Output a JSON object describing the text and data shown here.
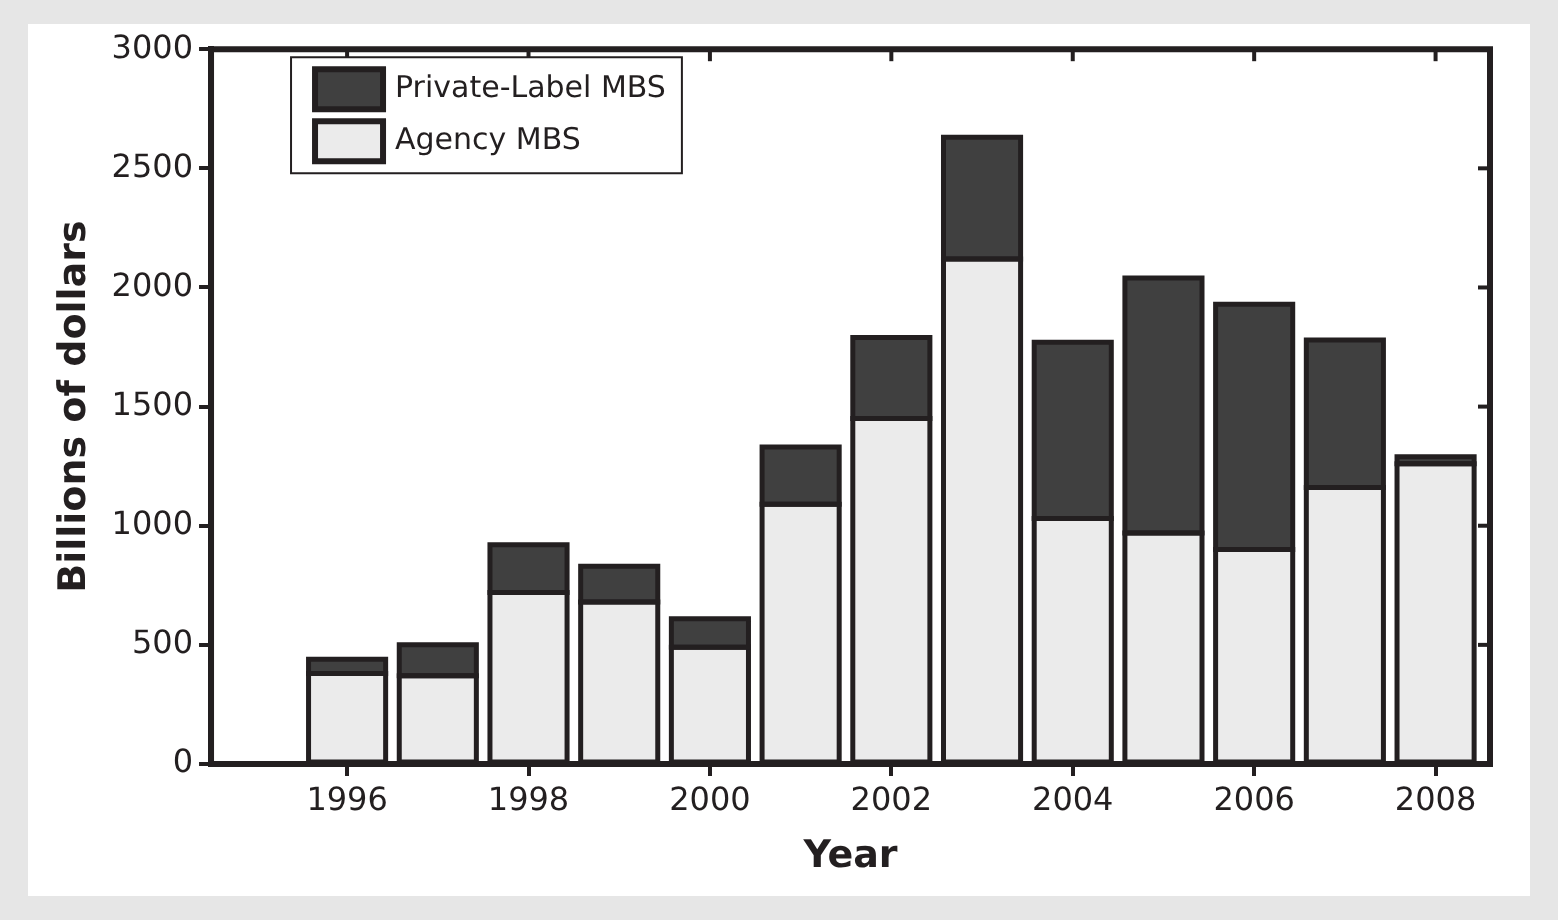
{
  "chart_data": {
    "type": "bar",
    "stacked": true,
    "xlabel": "Year",
    "ylabel": "Billions of dollars",
    "x": [
      1996,
      1997,
      1998,
      1999,
      2000,
      2001,
      2002,
      2003,
      2004,
      2005,
      2006,
      2007,
      2008
    ],
    "series": [
      {
        "name": "Agency MBS",
        "color": "#ebebeb",
        "values": [
          380,
          370,
          720,
          680,
          490,
          1090,
          1450,
          2120,
          1030,
          970,
          900,
          1160,
          1260
        ]
      },
      {
        "name": "Private-Label MBS",
        "color": "#404040",
        "values": [
          60,
          130,
          200,
          150,
          120,
          240,
          340,
          510,
          740,
          1070,
          1030,
          620,
          30
        ]
      }
    ],
    "xlim": [
      1994.5,
      2008.6
    ],
    "xticks": [
      1996,
      1998,
      2000,
      2002,
      2004,
      2006,
      2008
    ],
    "ylim": [
      0,
      3000
    ],
    "yticks": [
      0,
      500,
      1000,
      1500,
      2000,
      2500,
      3000
    ],
    "grid": false,
    "legend": "top left"
  }
}
